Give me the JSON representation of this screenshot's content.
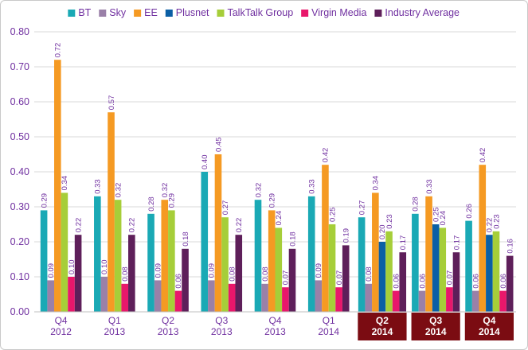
{
  "chart_data": {
    "type": "bar",
    "categories": [
      [
        "Q4",
        "2012"
      ],
      [
        "Q1",
        "2013"
      ],
      [
        "Q2",
        "2013"
      ],
      [
        "Q3",
        "2013"
      ],
      [
        "Q4",
        "2013"
      ],
      [
        "Q1",
        "2014"
      ],
      [
        "Q2",
        "2014"
      ],
      [
        "Q3",
        "2014"
      ],
      [
        "Q4",
        "2014"
      ]
    ],
    "highlighted_categories": [
      6,
      7,
      8
    ],
    "highlight_color": "#7b0c12",
    "ylim": [
      0,
      0.8
    ],
    "yticks": [
      "0.00",
      "0.10",
      "0.20",
      "0.30",
      "0.40",
      "0.50",
      "0.60",
      "0.70",
      "0.80"
    ],
    "gridlines": true,
    "legend_position": "top",
    "series": [
      {
        "name": "BT",
        "color": "#1aa9b5",
        "values": [
          0.29,
          0.33,
          0.28,
          0.4,
          0.32,
          0.33,
          0.27,
          0.28,
          0.26
        ]
      },
      {
        "name": "Sky",
        "color": "#9a80a8",
        "values": [
          0.09,
          0.1,
          0.09,
          0.09,
          0.08,
          0.09,
          0.08,
          0.06,
          0.06
        ]
      },
      {
        "name": "EE",
        "color": "#f59a23",
        "values": [
          0.72,
          0.57,
          0.32,
          0.45,
          0.29,
          0.42,
          0.34,
          0.33,
          0.42
        ]
      },
      {
        "name": "Plusnet",
        "color": "#0b5fa5",
        "values": [
          null,
          null,
          null,
          null,
          null,
          null,
          0.2,
          0.25,
          0.22
        ]
      },
      {
        "name": "TalkTalk Group",
        "color": "#a6ce39",
        "values": [
          0.34,
          0.32,
          0.29,
          0.27,
          0.24,
          0.25,
          0.23,
          0.24,
          0.23
        ]
      },
      {
        "name": "Virgin Media",
        "color": "#e8176b",
        "values": [
          0.1,
          0.08,
          0.06,
          0.08,
          0.07,
          0.07,
          0.06,
          0.07,
          0.06
        ]
      },
      {
        "name": "Industry Average",
        "color": "#5e1f5a",
        "values": [
          0.22,
          0.22,
          0.18,
          0.22,
          0.18,
          0.19,
          0.17,
          0.17,
          0.16
        ]
      }
    ]
  }
}
